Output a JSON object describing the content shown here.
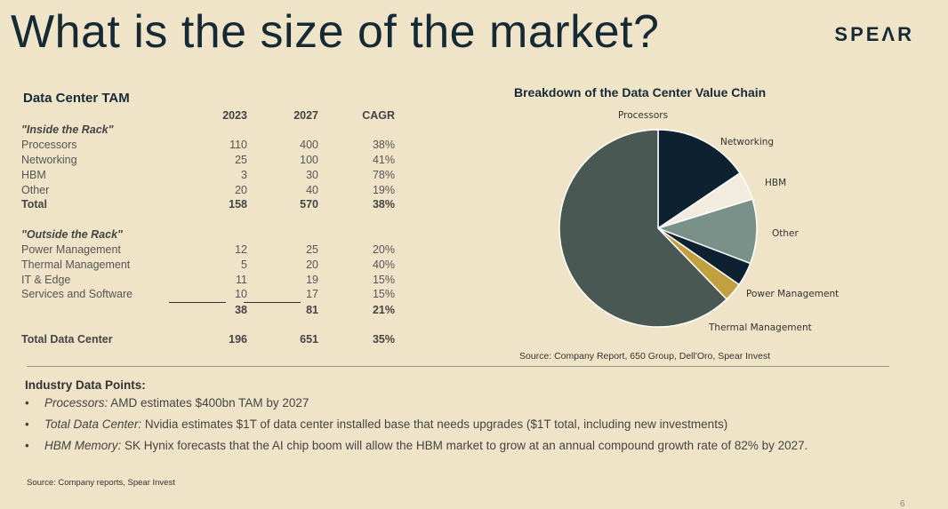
{
  "slide": {
    "title": "What is the size of the market?",
    "logo": "SPEΛR",
    "page_number": "6"
  },
  "tam": {
    "title": "Data Center TAM",
    "headers": [
      "2023",
      "2027",
      "CAGR"
    ],
    "inside_label": "\"Inside the Rack\"",
    "inside_rows": [
      {
        "label": "Processors",
        "y2023": "110",
        "y2027": "400",
        "cagr": "38%"
      },
      {
        "label": "Networking",
        "y2023": "25",
        "y2027": "100",
        "cagr": "41%"
      },
      {
        "label": "HBM",
        "y2023": "3",
        "y2027": "30",
        "cagr": "78%"
      },
      {
        "label": "Other",
        "y2023": "20",
        "y2027": "40",
        "cagr": "19%"
      }
    ],
    "inside_total": {
      "label": "Total",
      "y2023": "158",
      "y2027": "570",
      "cagr": "38%"
    },
    "outside_label": "\"Outside the Rack\"",
    "outside_rows": [
      {
        "label": "Power Management",
        "y2023": "12",
        "y2027": "25",
        "cagr": "20%"
      },
      {
        "label": "Thermal Management",
        "y2023": "5",
        "y2027": "20",
        "cagr": "40%"
      },
      {
        "label": "IT & Edge",
        "y2023": "11",
        "y2027": "19",
        "cagr": "15%"
      },
      {
        "label": "Services and Software",
        "y2023": "10",
        "y2027": "17",
        "cagr": "15%"
      }
    ],
    "outside_total": {
      "y2023": "38",
      "y2027": "81",
      "cagr": "21%"
    },
    "grand_total": {
      "label": "Total Data Center",
      "y2023": "196",
      "y2027": "651",
      "cagr": "35%"
    }
  },
  "chart_data": {
    "type": "pie",
    "title": "Breakdown of the Data Center Value Chain",
    "slices": [
      {
        "name": "Networking",
        "value": 100,
        "color": "#0d2130"
      },
      {
        "name": "HBM",
        "value": 30,
        "color": "#f1ecdd"
      },
      {
        "name": "Other",
        "value": 68,
        "color": "#7a9189"
      },
      {
        "name": "Power Management",
        "value": 25,
        "color": "#0d2130"
      },
      {
        "name": "Thermal Management",
        "value": 20,
        "color": "#c2a040"
      },
      {
        "name": "Processors",
        "value": 400,
        "color": "#4a5853"
      }
    ],
    "source": "Source: Company Report, 650 Group, Dell'Oro, Spear Invest"
  },
  "industry": {
    "title": "Industry Data Points:",
    "bullets": [
      {
        "lead": "Processors:",
        "text": " AMD estimates $400bn TAM by 2027"
      },
      {
        "lead": "Total Data Center:",
        "text": " Nvidia estimates $1T of data center installed base that needs upgrades ($1T total, including new investments)"
      },
      {
        "lead": "HBM Memory:",
        "text": " SK Hynix forecasts that the AI chip boom will allow the HBM market to grow at an annual compound growth rate of 82% by 2027."
      }
    ],
    "bullet_glyph": "•"
  },
  "footer": {
    "source": "Source: Company reports, Spear Invest"
  },
  "colors": {
    "background": "#efe4c8",
    "title": "#152a35"
  }
}
